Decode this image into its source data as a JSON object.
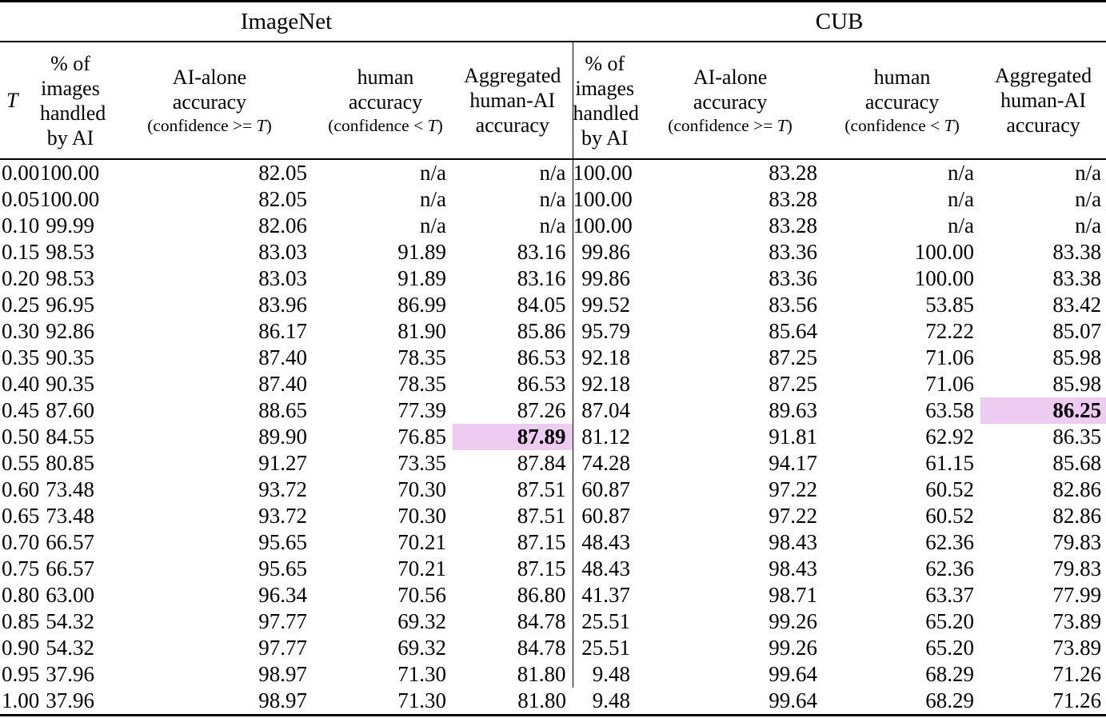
{
  "table": {
    "group_headers": [
      {
        "label": "ImageNet",
        "colspan": 5
      },
      {
        "label": "CUB",
        "colspan": 4
      }
    ],
    "columns": [
      {
        "id": "t",
        "header_lines": [
          "T"
        ]
      },
      {
        "id": "in-pct",
        "header_lines": [
          "% of",
          "images",
          "handled",
          "by AI"
        ]
      },
      {
        "id": "in-ai",
        "header_lines": [
          "AI-alone",
          "accuracy"
        ],
        "subheader": "(confidence >= T)"
      },
      {
        "id": "in-hum",
        "header_lines": [
          "human",
          "accuracy"
        ],
        "subheader": "(confidence < T)"
      },
      {
        "id": "in-agg",
        "header_lines": [
          "Aggregated",
          "human-AI",
          "accuracy"
        ]
      },
      {
        "id": "cub-pct",
        "header_lines": [
          "% of",
          "images",
          "handled",
          "by AI"
        ]
      },
      {
        "id": "cub-ai",
        "header_lines": [
          "AI-alone",
          "accuracy"
        ],
        "subheader": "(confidence >= T)"
      },
      {
        "id": "cub-hum",
        "header_lines": [
          "human",
          "accuracy"
        ],
        "subheader": "(confidence < T)"
      },
      {
        "id": "cub-agg",
        "header_lines": [
          "Aggregated",
          "human-AI",
          "accuracy"
        ]
      }
    ],
    "rows": [
      [
        "0.00",
        "100.00",
        "82.05",
        "n/a",
        "n/a",
        "100.00",
        "83.28",
        "n/a",
        "n/a"
      ],
      [
        "0.05",
        "100.00",
        "82.05",
        "n/a",
        "n/a",
        "100.00",
        "83.28",
        "n/a",
        "n/a"
      ],
      [
        "0.10",
        "99.99",
        "82.06",
        "n/a",
        "n/a",
        "100.00",
        "83.28",
        "n/a",
        "n/a"
      ],
      [
        "0.15",
        "98.53",
        "83.03",
        "91.89",
        "83.16",
        "99.86",
        "83.36",
        "100.00",
        "83.38"
      ],
      [
        "0.20",
        "98.53",
        "83.03",
        "91.89",
        "83.16",
        "99.86",
        "83.36",
        "100.00",
        "83.38"
      ],
      [
        "0.25",
        "96.95",
        "83.96",
        "86.99",
        "84.05",
        "99.52",
        "83.56",
        "53.85",
        "83.42"
      ],
      [
        "0.30",
        "92.86",
        "86.17",
        "81.90",
        "85.86",
        "95.79",
        "85.64",
        "72.22",
        "85.07"
      ],
      [
        "0.35",
        "90.35",
        "87.40",
        "78.35",
        "86.53",
        "92.18",
        "87.25",
        "71.06",
        "85.98"
      ],
      [
        "0.40",
        "90.35",
        "87.40",
        "78.35",
        "86.53",
        "92.18",
        "87.25",
        "71.06",
        "85.98"
      ],
      [
        "0.45",
        "87.60",
        "88.65",
        "77.39",
        "87.26",
        "87.04",
        "89.63",
        "63.58",
        "86.25"
      ],
      [
        "0.50",
        "84.55",
        "89.90",
        "76.85",
        "87.89",
        "81.12",
        "91.81",
        "62.92",
        "86.35"
      ],
      [
        "0.55",
        "80.85",
        "91.27",
        "73.35",
        "87.84",
        "74.28",
        "94.17",
        "61.15",
        "85.68"
      ],
      [
        "0.60",
        "73.48",
        "93.72",
        "70.30",
        "87.51",
        "60.87",
        "97.22",
        "60.52",
        "82.86"
      ],
      [
        "0.65",
        "73.48",
        "93.72",
        "70.30",
        "87.51",
        "60.87",
        "97.22",
        "60.52",
        "82.86"
      ],
      [
        "0.70",
        "66.57",
        "95.65",
        "70.21",
        "87.15",
        "48.43",
        "98.43",
        "62.36",
        "79.83"
      ],
      [
        "0.75",
        "66.57",
        "95.65",
        "70.21",
        "87.15",
        "48.43",
        "98.43",
        "62.36",
        "79.83"
      ],
      [
        "0.80",
        "63.00",
        "96.34",
        "70.56",
        "86.80",
        "41.37",
        "98.71",
        "63.37",
        "77.99"
      ],
      [
        "0.85",
        "54.32",
        "97.77",
        "69.32",
        "84.78",
        "25.51",
        "99.26",
        "65.20",
        "73.89"
      ],
      [
        "0.90",
        "54.32",
        "97.77",
        "69.32",
        "84.78",
        "25.51",
        "99.26",
        "65.20",
        "73.89"
      ],
      [
        "0.95",
        "37.96",
        "98.97",
        "71.30",
        "81.80",
        "9.48",
        "99.64",
        "68.29",
        "71.26"
      ],
      [
        "1.00",
        "37.96",
        "98.97",
        "71.30",
        "81.80",
        "9.48",
        "99.64",
        "68.29",
        "71.26"
      ]
    ],
    "highlights": [
      {
        "row": 10,
        "col": 4,
        "value": "87.89",
        "dataset": "ImageNet"
      },
      {
        "row": 9,
        "col": 8,
        "value": "86.25",
        "dataset": "CUB"
      }
    ],
    "highlight_color": "#eeccf2"
  }
}
